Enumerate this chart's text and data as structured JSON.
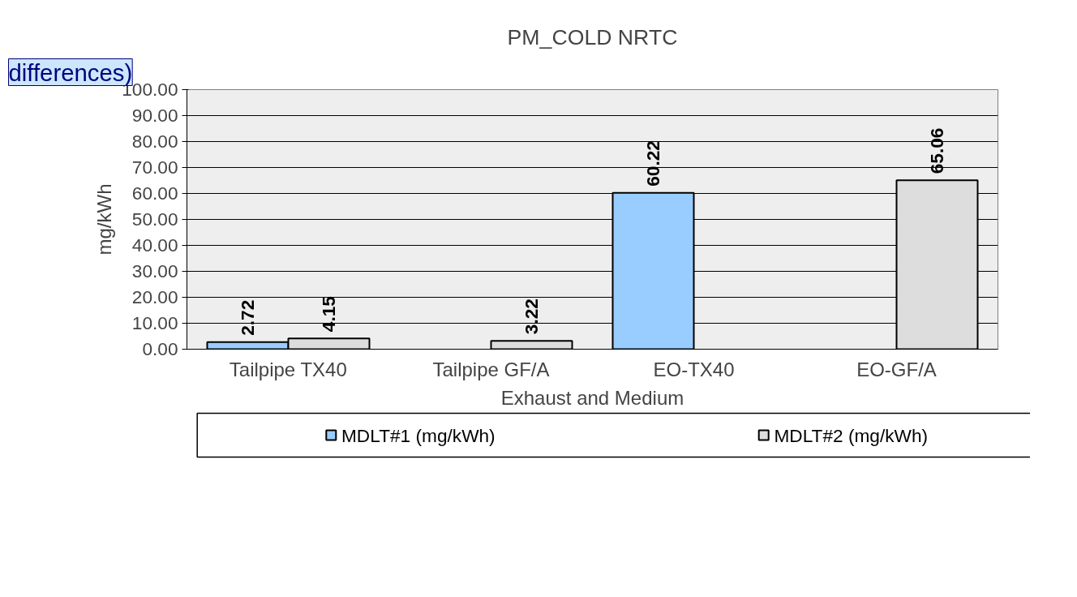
{
  "chart_data": {
    "type": "bar",
    "title": "PM_COLD NRTC",
    "xlabel": "Exhaust and Medium",
    "ylabel": "mg/kWh",
    "categories": [
      "Tailpipe TX40",
      "Tailpipe GF/A",
      "EO-TX40",
      "EO-GF/A"
    ],
    "series": [
      {
        "name": "MDLT#1 (mg/kWh)",
        "color": "#99ccff",
        "values": [
          2.72,
          null,
          60.22,
          null
        ]
      },
      {
        "name": "MDLT#2 (mg/kWh)",
        "color": "#dddddd",
        "values": [
          4.15,
          3.22,
          null,
          65.06
        ]
      }
    ],
    "ylim": [
      0,
      100
    ],
    "yticks": [
      {
        "value": 0,
        "label": "0.00"
      },
      {
        "value": 10,
        "label": "10.00"
      },
      {
        "value": 20,
        "label": "20.00"
      },
      {
        "value": 30,
        "label": "30.00"
      },
      {
        "value": 40,
        "label": "40.00"
      },
      {
        "value": 50,
        "label": "50.00"
      },
      {
        "value": 60,
        "label": "60.00"
      },
      {
        "value": 70,
        "label": "70.00"
      },
      {
        "value": 80,
        "label": "80.00"
      },
      {
        "value": 90,
        "label": "90.00"
      },
      {
        "value": 100,
        "label": "100.00"
      }
    ],
    "grid": "y",
    "legend": "bottom",
    "data_labels": true,
    "annotations": [
      "differences)"
    ]
  }
}
